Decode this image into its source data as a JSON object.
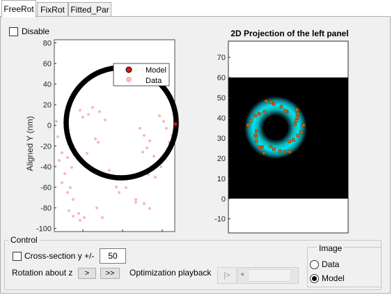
{
  "tabs": [
    {
      "label": "FreeRot",
      "active": true
    },
    {
      "label": "FixRot",
      "active": false
    },
    {
      "label": "Fitted_Par",
      "active": false
    }
  ],
  "disable": {
    "label": "Disable",
    "checked": false
  },
  "left_plot": {
    "ylabel": "Aligned Y (nm)",
    "yticks": [
      80,
      60,
      40,
      20,
      0,
      -20,
      -40,
      -60,
      -80,
      -100
    ],
    "ylim": [
      -103,
      83
    ],
    "legend": {
      "model": "Model",
      "data": "Data"
    },
    "colors": {
      "model": "#000000",
      "data": "#f7b8b8",
      "model_marker": "#ee1111"
    }
  },
  "right_plot": {
    "title": "2D Projection of the left panel",
    "yticks": [
      70,
      60,
      50,
      40,
      30,
      20,
      10,
      0,
      -10
    ],
    "ylim": [
      -17,
      78
    ],
    "image_extent_y": [
      0,
      60
    ],
    "colors": {
      "ring": "#00e5f0",
      "points": "#c86414",
      "background": "#000000"
    }
  },
  "control": {
    "title": "Control",
    "cross_section": {
      "label": "Cross-section y +/-",
      "value": "50",
      "checked": false
    },
    "rotation": {
      "label": "Rotation about z",
      "btn1": ">",
      "btn2": ">>"
    },
    "playback": {
      "label": "Optimization playback",
      "slider_button": "|>"
    }
  },
  "image_group": {
    "title": "Image",
    "options": [
      {
        "label": "Data",
        "selected": false
      },
      {
        "label": "Model",
        "selected": true
      }
    ]
  }
}
